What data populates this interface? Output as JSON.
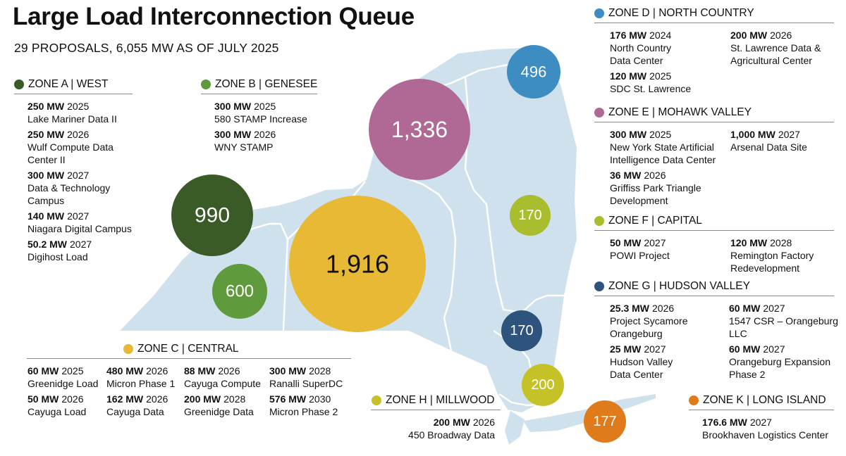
{
  "title": "Large Load Interconnection Queue",
  "subtitle": "29 PROPOSALS, 6,055 MW AS OF JULY 2025",
  "colors": {
    "land": "#cfe1ec",
    "border": "#ffffff",
    "zone_a": "#3a5a27",
    "zone_b": "#5f9a3c",
    "zone_c": "#e8b934",
    "zone_d": "#3d8cc2",
    "zone_e": "#b06994",
    "zone_f": "#a9bd2e",
    "zone_g": "#2e547d",
    "zone_h": "#c4c227",
    "zone_k": "#e07b1b"
  },
  "bubbles": [
    {
      "zone": "A",
      "value": "990",
      "color": "#3a5a27",
      "text_color": "#ffffff"
    },
    {
      "zone": "B",
      "value": "600",
      "color": "#5f9a3c",
      "text_color": "#ffffff"
    },
    {
      "zone": "C",
      "value": "1,916",
      "color": "#e8b934",
      "text_color": "#111111"
    },
    {
      "zone": "D",
      "value": "496",
      "color": "#3d8cc2",
      "text_color": "#ffffff"
    },
    {
      "zone": "E",
      "value": "1,336",
      "color": "#b06994",
      "text_color": "#ffffff"
    },
    {
      "zone": "F",
      "value": "170",
      "color": "#a9bd2e",
      "text_color": "#ffffff"
    },
    {
      "zone": "G",
      "value": "170",
      "color": "#2e547d",
      "text_color": "#ffffff"
    },
    {
      "zone": "H",
      "value": "200",
      "color": "#c4c227",
      "text_color": "#ffffff"
    },
    {
      "zone": "K",
      "value": "177",
      "color": "#e07b1b",
      "text_color": "#ffffff"
    }
  ],
  "zones": {
    "a": {
      "label": "ZONE A | WEST",
      "color": "#3a5a27",
      "entries": [
        {
          "mw": "250 MW",
          "year": "2025",
          "name": "Lake Mariner Data II"
        },
        {
          "mw": "250 MW",
          "year": "2026",
          "name": "Wulf Compute Data\nCenter II"
        },
        {
          "mw": "300 MW",
          "year": "2027",
          "name": "Data & Technology\nCampus"
        },
        {
          "mw": "140 MW",
          "year": "2027",
          "name": "Niagara Digital Campus"
        },
        {
          "mw": "50.2 MW",
          "year": "2027",
          "name": "Digihost Load"
        }
      ]
    },
    "b": {
      "label": "ZONE B  | GENESEE",
      "color": "#5f9a3c",
      "entries": [
        {
          "mw": "300 MW",
          "year": "2025",
          "name": "580 STAMP Increase"
        },
        {
          "mw": "300 MW",
          "year": "2026",
          "name": "WNY STAMP"
        }
      ]
    },
    "c": {
      "label": "ZONE C | CENTRAL",
      "color": "#e8b934",
      "entries": [
        {
          "mw": "60 MW",
          "year": "2025",
          "name": "Greenidge Load"
        },
        {
          "mw": "480 MW",
          "year": "2026",
          "name": "Micron Phase 1"
        },
        {
          "mw": "88 MW",
          "year": "2026",
          "name": "Cayuga Compute"
        },
        {
          "mw": "300 MW",
          "year": "2028",
          "name": "Ranalli SuperDC"
        },
        {
          "mw": "50 MW",
          "year": "2026",
          "name": "Cayuga Load"
        },
        {
          "mw": "162 MW",
          "year": "2026",
          "name": "Cayuga Data"
        },
        {
          "mw": "200 MW",
          "year": "2028",
          "name": "Greenidge Data"
        },
        {
          "mw": "576 MW",
          "year": "2030",
          "name": "Micron Phase 2"
        }
      ]
    },
    "d": {
      "label": "ZONE D | NORTH COUNTRY",
      "color": "#3d8cc2",
      "entries": [
        {
          "mw": "176 MW",
          "year": "2024",
          "name": "North Country\nData Center"
        },
        {
          "mw": "200 MW",
          "year": "2026",
          "name": "St. Lawrence Data &\nAgricultural Center"
        },
        {
          "mw": "120 MW",
          "year": "2025",
          "name": "SDC St. Lawrence"
        }
      ]
    },
    "e": {
      "label": "ZONE E | MOHAWK VALLEY",
      "color": "#b06994",
      "entries": [
        {
          "mw": "300 MW",
          "year": "2025",
          "name": "New York State Artificial\nIntelligence Data Center"
        },
        {
          "mw": "1,000 MW",
          "year": "2027",
          "name": "Arsenal Data Site"
        },
        {
          "mw": "36 MW",
          "year": "2026",
          "name": "Griffiss Park Triangle\nDevelopment"
        }
      ]
    },
    "f": {
      "label": "ZONE F | CAPITAL",
      "color": "#a9bd2e",
      "entries": [
        {
          "mw": "50 MW",
          "year": "2027",
          "name": "POWI Project"
        },
        {
          "mw": "120 MW",
          "year": "2028",
          "name": "Remington Factory\nRedevelopment"
        }
      ]
    },
    "g": {
      "label": "ZONE G | HUDSON VALLEY",
      "color": "#2e547d",
      "entries": [
        {
          "mw": "25.3 MW",
          "year": "2026",
          "name": "Project Sycamore\nOrangeburg"
        },
        {
          "mw": "60 MW",
          "year": "2027",
          "name": "1547 CSR – Orangeburg\nLLC"
        },
        {
          "mw": "25 MW",
          "year": "2027",
          "name": "Hudson Valley\nData Center"
        },
        {
          "mw": "60 MW",
          "year": "2027",
          "name": "Orangeburg Expansion\nPhase 2"
        }
      ]
    },
    "h": {
      "label": "ZONE H | MILLWOOD",
      "color": "#c4c227",
      "entries": [
        {
          "mw": "200 MW",
          "year": "2026",
          "name": "450 Broadway Data"
        }
      ]
    },
    "k": {
      "label": "ZONE K | LONG ISLAND",
      "color": "#e07b1b",
      "entries": [
        {
          "mw": "176.6 MW",
          "year": "2027",
          "name": "Brookhaven Logistics Center"
        }
      ]
    }
  }
}
